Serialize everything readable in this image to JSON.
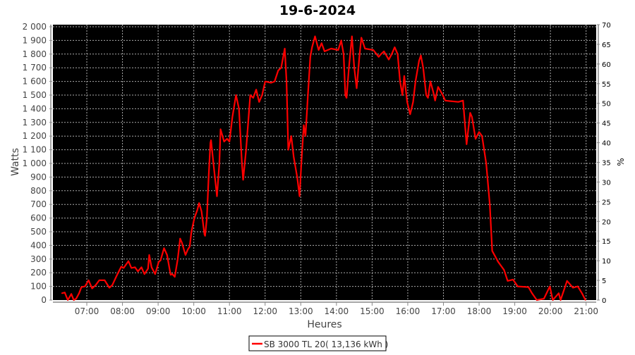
{
  "chart_data": {
    "type": "line",
    "title": "19-6-2024",
    "xlabel": "Heures",
    "ylabel": "Watts",
    "y2label": "%",
    "xlim": [
      "06:03",
      "21:17"
    ],
    "ylim": [
      0,
      2000
    ],
    "y2lim": [
      0,
      70
    ],
    "grid": true,
    "legend_position": "bottom",
    "background": "#000000",
    "x_ticks": [
      "07:00",
      "08:00",
      "09:00",
      "10:00",
      "11:00",
      "12:00",
      "13:00",
      "14:00",
      "15:00",
      "16:00",
      "17:00",
      "18:00",
      "19:00",
      "20:00",
      "21:00"
    ],
    "y_ticks": [
      "0",
      "100",
      "200",
      "300",
      "400",
      "500",
      "600",
      "700",
      "800",
      "900",
      "1 000",
      "1 100",
      "1 200",
      "1 300",
      "1 400",
      "1 500",
      "1 600",
      "1 700",
      "1 800",
      "1 900",
      "2 000"
    ],
    "y2_ticks": [
      "0",
      "5",
      "10",
      "15",
      "20",
      "25",
      "30",
      "35",
      "40",
      "45",
      "50",
      "55",
      "60",
      "65",
      "70"
    ],
    "series": [
      {
        "name": "SB 3000 TL 20( 13,136 kWh )",
        "color": "#ff0000",
        "x": [
          "06:18",
          "06:23",
          "06:28",
          "06:34",
          "06:38",
          "06:42",
          "06:47",
          "06:51",
          "06:57",
          "07:03",
          "07:09",
          "07:15",
          "07:21",
          "07:30",
          "07:38",
          "07:43",
          "07:51",
          "07:58",
          "08:02",
          "08:10",
          "08:15",
          "08:21",
          "08:26",
          "08:32",
          "08:37",
          "08:43",
          "08:45",
          "08:49",
          "08:55",
          "09:01",
          "09:04",
          "09:10",
          "09:15",
          "09:21",
          "09:24",
          "09:28",
          "09:33",
          "09:37",
          "09:40",
          "09:46",
          "09:50",
          "09:53",
          "09:56",
          "10:01",
          "10:06",
          "10:09",
          "10:13",
          "10:18",
          "10:19",
          "10:22",
          "10:25",
          "10:28",
          "10:29",
          "10:33",
          "10:39",
          "10:43",
          "10:45",
          "10:51",
          "10:56",
          "11:00",
          "11:05",
          "11:11",
          "11:16",
          "11:21",
          "11:23",
          "11:28",
          "11:35",
          "11:40",
          "11:45",
          "11:50",
          "11:55",
          "12:00",
          "12:10",
          "12:16",
          "12:22",
          "12:27",
          "12:33",
          "12:36",
          "12:39",
          "12:44",
          "12:48",
          "12:54",
          "12:58",
          "13:01",
          "13:05",
          "13:08",
          "13:12",
          "13:16",
          "13:19",
          "13:24",
          "13:30",
          "13:35",
          "13:40",
          "13:51",
          "14:03",
          "14:08",
          "14:12",
          "14:15",
          "14:17",
          "14:21",
          "14:26",
          "14:30",
          "14:34",
          "14:39",
          "14:42",
          "14:48",
          "15:02",
          "15:11",
          "15:15",
          "15:20",
          "15:28",
          "15:33",
          "15:38",
          "15:43",
          "15:47",
          "15:51",
          "15:54",
          "15:59",
          "16:04",
          "16:09",
          "16:13",
          "16:19",
          "16:22",
          "16:26",
          "16:31",
          "16:34",
          "16:38",
          "16:43",
          "16:46",
          "16:51",
          "16:59",
          "17:03",
          "17:25",
          "17:33",
          "17:36",
          "17:39",
          "17:45",
          "17:48",
          "17:54",
          "18:00",
          "18:05",
          "18:12",
          "18:18",
          "18:22",
          "18:27",
          "18:32",
          "18:42",
          "18:48",
          "18:57",
          "19:05",
          "19:23",
          "19:29",
          "19:37",
          "19:49",
          "19:59",
          "20:04",
          "20:14",
          "20:17",
          "20:28",
          "20:38",
          "20:46",
          "20:53",
          "20:59"
        ],
        "y": [
          50,
          55,
          0,
          45,
          0,
          10,
          50,
          95,
          100,
          145,
          85,
          110,
          145,
          145,
          90,
          110,
          185,
          245,
          235,
          285,
          235,
          240,
          210,
          240,
          190,
          230,
          330,
          240,
          190,
          280,
          290,
          380,
          330,
          185,
          190,
          170,
          300,
          450,
          420,
          330,
          370,
          390,
          500,
          600,
          660,
          710,
          650,
          480,
          470,
          600,
          900,
          1150,
          1170,
          1000,
          760,
          1000,
          1250,
          1160,
          1180,
          1160,
          1340,
          1500,
          1400,
          1000,
          880,
          1100,
          1500,
          1480,
          1540,
          1450,
          1500,
          1600,
          1590,
          1600,
          1680,
          1700,
          1840,
          1600,
          1100,
          1200,
          1050,
          900,
          760,
          1000,
          1280,
          1200,
          1500,
          1780,
          1850,
          1930,
          1830,
          1880,
          1820,
          1840,
          1830,
          1900,
          1800,
          1500,
          1480,
          1700,
          1930,
          1700,
          1550,
          1800,
          1920,
          1840,
          1830,
          1780,
          1800,
          1820,
          1760,
          1800,
          1850,
          1800,
          1600,
          1500,
          1640,
          1450,
          1360,
          1450,
          1600,
          1750,
          1790,
          1700,
          1500,
          1480,
          1600,
          1520,
          1460,
          1560,
          1500,
          1460,
          1450,
          1460,
          1300,
          1140,
          1370,
          1340,
          1180,
          1230,
          1200,
          1000,
          700,
          360,
          320,
          280,
          220,
          140,
          150,
          100,
          95,
          50,
          0,
          10,
          100,
          0,
          50,
          0,
          140,
          90,
          100,
          50,
          0
        ]
      }
    ]
  }
}
